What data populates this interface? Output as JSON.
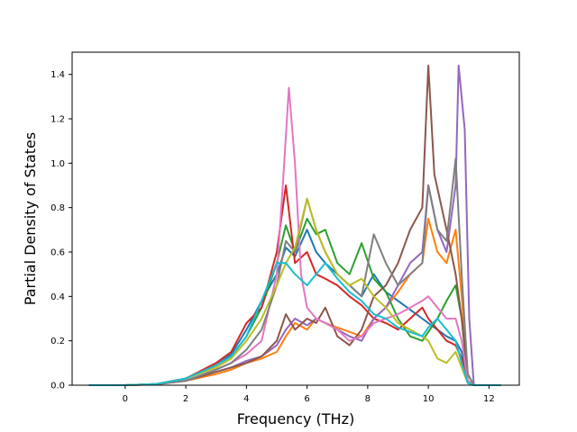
{
  "chart_data": {
    "type": "line",
    "title": "",
    "xlabel": "Frequency (THz)",
    "ylabel": "Partial Density of States",
    "xlim": [
      -1.75,
      13.0
    ],
    "ylim": [
      0.0,
      1.5
    ],
    "xticks": [
      0,
      2,
      4,
      6,
      8,
      10,
      12
    ],
    "yticks": [
      0.0,
      0.2,
      0.4,
      0.6,
      0.8,
      1.0,
      1.2,
      1.4
    ],
    "xtick_labels": [
      "0",
      "2",
      "4",
      "6",
      "8",
      "10",
      "12"
    ],
    "ytick_labels": [
      "0.0",
      "0.2",
      "0.4",
      "0.6",
      "0.8",
      "1.0",
      "1.2",
      "1.4"
    ],
    "grid": false,
    "legend": "none",
    "series": [
      {
        "color": "#1f77b4",
        "x": [
          -1.2,
          0,
          1,
          2,
          3,
          3.5,
          4,
          4.5,
          5,
          5.3,
          5.6,
          6,
          6.3,
          6.6,
          7,
          7.4,
          7.8,
          8.2,
          8.6,
          9,
          9.4,
          9.8,
          10,
          10.3,
          10.6,
          10.9,
          11.1,
          11.3,
          11.5,
          12.4
        ],
        "y": [
          0,
          0,
          0.005,
          0.03,
          0.09,
          0.14,
          0.25,
          0.38,
          0.5,
          0.62,
          0.58,
          0.7,
          0.6,
          0.55,
          0.5,
          0.45,
          0.4,
          0.5,
          0.42,
          0.38,
          0.34,
          0.3,
          0.28,
          0.25,
          0.22,
          0.2,
          0.15,
          0.02,
          0,
          0
        ]
      },
      {
        "color": "#ff7f0e",
        "x": [
          -1.2,
          0,
          1,
          2,
          3,
          3.5,
          4,
          4.5,
          5,
          5.3,
          5.6,
          6,
          6.3,
          6.6,
          7,
          7.4,
          7.8,
          8.2,
          8.6,
          9,
          9.4,
          9.8,
          10,
          10.3,
          10.6,
          10.9,
          11.1,
          11.3,
          11.5,
          12.4
        ],
        "y": [
          0,
          0,
          0.003,
          0.02,
          0.05,
          0.07,
          0.1,
          0.12,
          0.15,
          0.22,
          0.28,
          0.25,
          0.3,
          0.28,
          0.26,
          0.24,
          0.22,
          0.3,
          0.35,
          0.42,
          0.5,
          0.55,
          0.75,
          0.6,
          0.55,
          0.7,
          0.4,
          0.05,
          0,
          0
        ]
      },
      {
        "color": "#2ca02c",
        "x": [
          -1.2,
          0,
          1,
          2,
          3,
          3.5,
          4,
          4.5,
          5,
          5.3,
          5.6,
          6,
          6.3,
          6.6,
          7,
          7.4,
          7.8,
          8.2,
          8.6,
          9,
          9.4,
          9.8,
          10,
          10.3,
          10.6,
          10.9,
          11.1,
          11.3,
          11.5,
          12.4
        ],
        "y": [
          0,
          0,
          0.005,
          0.03,
          0.09,
          0.13,
          0.22,
          0.35,
          0.55,
          0.72,
          0.6,
          0.75,
          0.68,
          0.7,
          0.55,
          0.5,
          0.64,
          0.48,
          0.42,
          0.3,
          0.22,
          0.2,
          0.24,
          0.3,
          0.38,
          0.45,
          0.3,
          0.02,
          0,
          0
        ]
      },
      {
        "color": "#d62728",
        "x": [
          -1.2,
          0,
          1,
          2,
          3,
          3.5,
          4,
          4.5,
          5,
          5.3,
          5.6,
          6,
          6.3,
          6.6,
          7,
          7.4,
          7.8,
          8.2,
          8.6,
          9,
          9.4,
          9.8,
          10,
          10.3,
          10.6,
          10.9,
          11.1,
          11.3,
          11.5,
          12.4
        ],
        "y": [
          0,
          0,
          0.005,
          0.03,
          0.1,
          0.15,
          0.28,
          0.35,
          0.6,
          0.9,
          0.55,
          0.6,
          0.5,
          0.48,
          0.45,
          0.4,
          0.36,
          0.3,
          0.28,
          0.25,
          0.3,
          0.35,
          0.3,
          0.25,
          0.2,
          0.18,
          0.12,
          0.01,
          0,
          0
        ]
      },
      {
        "color": "#9467bd",
        "x": [
          -1.2,
          0,
          1,
          2,
          3,
          3.5,
          4,
          4.5,
          5,
          5.3,
          5.6,
          6,
          6.3,
          6.6,
          7,
          7.4,
          7.8,
          8.2,
          8.6,
          9,
          9.4,
          9.8,
          10,
          10.3,
          10.6,
          10.9,
          11.0,
          11.2,
          11.35,
          11.5,
          12.4
        ],
        "y": [
          0,
          0,
          0.004,
          0.02,
          0.06,
          0.08,
          0.11,
          0.13,
          0.18,
          0.25,
          0.3,
          0.27,
          0.3,
          0.28,
          0.25,
          0.22,
          0.2,
          0.3,
          0.35,
          0.45,
          0.55,
          0.6,
          0.9,
          0.7,
          0.6,
          0.9,
          1.44,
          1.15,
          0.3,
          0,
          0
        ]
      },
      {
        "color": "#8c564b",
        "x": [
          -1.2,
          0,
          1,
          2,
          3,
          3.5,
          4,
          4.5,
          5,
          5.3,
          5.6,
          6,
          6.3,
          6.6,
          7,
          7.4,
          7.8,
          8.2,
          8.6,
          9,
          9.4,
          9.8,
          10,
          10.2,
          10.6,
          10.9,
          11.1,
          11.3,
          11.5,
          12.4
        ],
        "y": [
          0,
          0,
          0.004,
          0.02,
          0.06,
          0.08,
          0.1,
          0.13,
          0.2,
          0.32,
          0.25,
          0.3,
          0.28,
          0.35,
          0.22,
          0.18,
          0.25,
          0.4,
          0.45,
          0.55,
          0.7,
          0.8,
          1.44,
          0.95,
          0.7,
          0.5,
          0.3,
          0.05,
          0,
          0
        ]
      },
      {
        "color": "#e377c2",
        "x": [
          -1.2,
          0,
          1,
          2,
          3,
          3.5,
          4,
          4.5,
          5,
          5.2,
          5.4,
          5.6,
          5.8,
          6,
          6.3,
          6.6,
          7,
          7.4,
          7.8,
          8.2,
          8.6,
          9,
          9.4,
          9.8,
          10,
          10.3,
          10.6,
          10.9,
          11.1,
          11.3,
          11.5,
          12.4
        ],
        "y": [
          0,
          0,
          0.004,
          0.02,
          0.07,
          0.1,
          0.14,
          0.2,
          0.5,
          0.9,
          1.34,
          1.0,
          0.5,
          0.35,
          0.3,
          0.28,
          0.25,
          0.2,
          0.22,
          0.28,
          0.3,
          0.32,
          0.35,
          0.38,
          0.4,
          0.35,
          0.3,
          0.3,
          0.2,
          0.02,
          0,
          0
        ]
      },
      {
        "color": "#7f7f7f",
        "x": [
          -1.2,
          0,
          1,
          2,
          3,
          3.5,
          4,
          4.5,
          5,
          5.3,
          5.6,
          6,
          6.3,
          6.6,
          7,
          7.4,
          7.8,
          8.2,
          8.6,
          9,
          9.4,
          9.8,
          10,
          10.3,
          10.6,
          10.9,
          11.1,
          11.3,
          11.5,
          12.4
        ],
        "y": [
          0,
          0,
          0.004,
          0.02,
          0.07,
          0.1,
          0.16,
          0.25,
          0.45,
          0.65,
          0.6,
          0.84,
          0.7,
          0.6,
          0.5,
          0.45,
          0.4,
          0.68,
          0.55,
          0.45,
          0.5,
          0.55,
          0.9,
          0.7,
          0.65,
          1.02,
          0.5,
          0.05,
          0,
          0
        ]
      },
      {
        "color": "#bcbd22",
        "x": [
          -1.2,
          0,
          1,
          2,
          3,
          3.5,
          4,
          4.5,
          5,
          5.3,
          5.6,
          6,
          6.3,
          6.6,
          7,
          7.4,
          7.8,
          8.2,
          8.6,
          9,
          9.4,
          9.8,
          10,
          10.3,
          10.6,
          10.9,
          11.1,
          11.3,
          11.5,
          12.4
        ],
        "y": [
          0,
          0,
          0.005,
          0.03,
          0.08,
          0.12,
          0.2,
          0.3,
          0.45,
          0.55,
          0.62,
          0.84,
          0.7,
          0.6,
          0.5,
          0.45,
          0.48,
          0.4,
          0.35,
          0.28,
          0.25,
          0.22,
          0.2,
          0.12,
          0.1,
          0.15,
          0.08,
          0.01,
          0,
          0
        ]
      },
      {
        "color": "#17becf",
        "x": [
          -1.2,
          0,
          1,
          2,
          3,
          3.5,
          4,
          4.5,
          5,
          5.3,
          5.6,
          6,
          6.3,
          6.6,
          7,
          7.4,
          7.8,
          8.2,
          8.6,
          9,
          9.4,
          9.8,
          10,
          10.3,
          10.6,
          10.9,
          11.1,
          11.3,
          11.5,
          12.4
        ],
        "y": [
          0,
          0,
          0.005,
          0.03,
          0.09,
          0.13,
          0.22,
          0.38,
          0.55,
          0.55,
          0.5,
          0.45,
          0.5,
          0.55,
          0.48,
          0.42,
          0.38,
          0.32,
          0.3,
          0.26,
          0.24,
          0.22,
          0.26,
          0.3,
          0.25,
          0.2,
          0.1,
          0.01,
          0,
          0
        ]
      }
    ]
  }
}
